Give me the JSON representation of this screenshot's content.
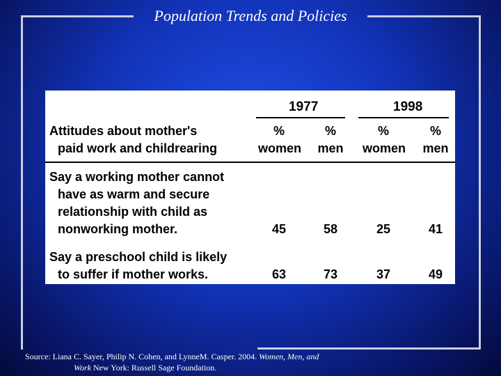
{
  "slide": {
    "title": "Population Trends and Policies",
    "colors": {
      "background": "#1233b8",
      "frame": "#c9cfe0",
      "text": "#ffffff"
    }
  },
  "table": {
    "row_header": [
      "Attitudes about mother's",
      "paid work and childrearing"
    ],
    "years": [
      "1977",
      "1998"
    ],
    "columns": [
      {
        "line1": "%",
        "line2": "women"
      },
      {
        "line1": "%",
        "line2": "men"
      },
      {
        "line1": "%",
        "line2": "women"
      },
      {
        "line1": "%",
        "line2": "men"
      }
    ],
    "rows": [
      {
        "label": [
          "Say a working mother cannot",
          "have as warm and secure",
          "relationship with child as",
          "nonworking mother."
        ],
        "values": [
          "45",
          "58",
          "25",
          "41"
        ]
      },
      {
        "label": [
          "Say a preschool child is likely",
          "to suffer if mother works."
        ],
        "values": [
          "63",
          "73",
          "37",
          "49"
        ]
      }
    ]
  },
  "source": {
    "prefix": "Source:  Liana C. Sayer, Philip N. Cohen, and LynneM. Casper. 2004. ",
    "title_part1": "Women, Men, and",
    "title_part2": "Work",
    "suffix": " New York: Russell Sage Foundation."
  }
}
